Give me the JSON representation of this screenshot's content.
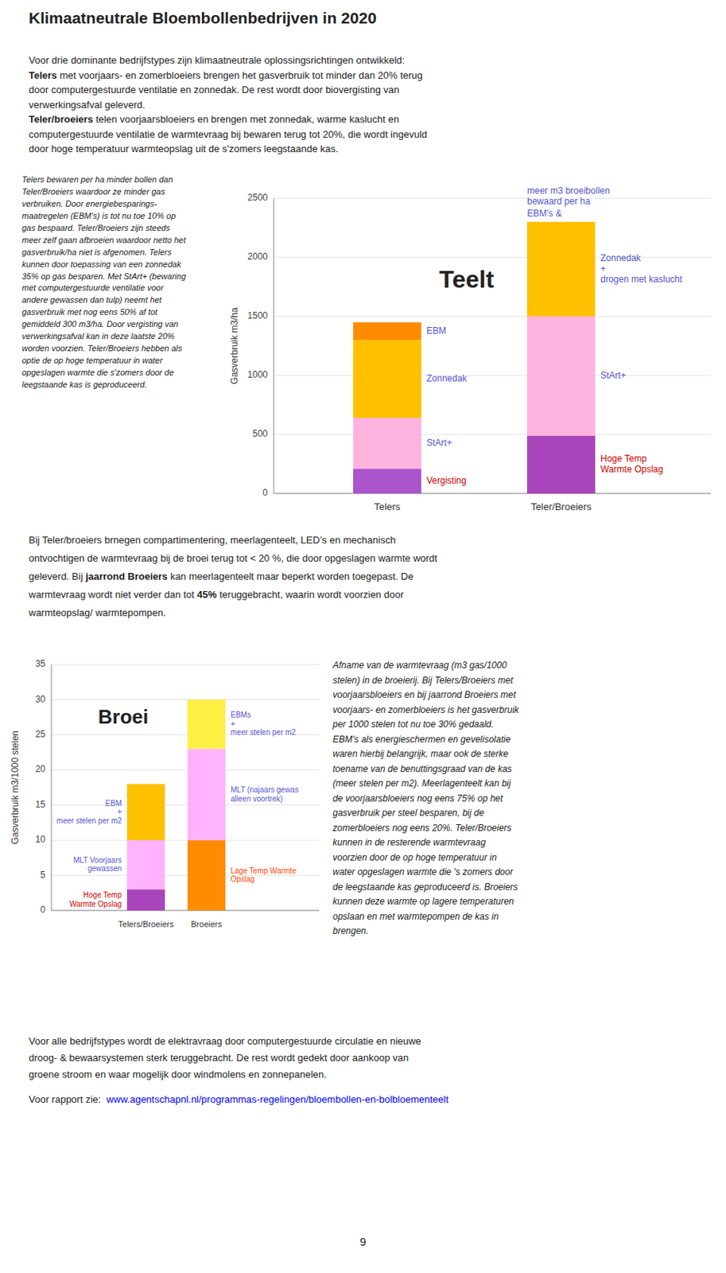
{
  "title": "Klimaatneutrale Bloembollenbedrijven in 2020",
  "intro_lines": [
    "Voor drie dominante bedrijfstypes zijn klimaatneutrale oplossingsrichtingen ontwikkeld:",
    {
      "bold": "Telers",
      "text": " met voorjaars- en zomerbloeiers brengen het gasverbruik tot minder dan 20% terug"
    },
    "door computergestuurde ventilatie en zonnedak. De rest wordt door biovergisting van",
    "verwerkingsafval geleverd.",
    {
      "bold": "Teler/broeiers",
      "text": " telen voorjaarsbloeiers en brengen met zonnedak, warme kaslucht en"
    },
    "computergestuurde ventilatie de warmtevraag bij bewaren terug tot 20%, die wordt ingevuld",
    "door hoge temperatuur warmteopslag uit de s'zomers leegstaande kas."
  ],
  "left_text": "Telers bewaren per ha minder bollen dan\nTeler/Broeiers waardoor ze minder gas\nverbruiken. Door energiebesparings-\nmaatregelen (EBM's) is tot nu toe 10% op\ngas bespaard. Teler/Broeiers zijn steeds\nmeer zelf gaan afbroeien waardoor netto het\ngasverbruik/ha niet is afgenomen. Telers\nkunnen door toepassing van een zonnedak\n35% op gas besparen. Met StArt+ (bewaring\nmet computergestuurde ventilatie voor\nandere gewassen dan tulp) neemt het\ngasverbruik met nog eens 50% af tot\ngemiddeld 300 m3/ha. Door vergisting van\nverwerkingsafval kan in deze laatste 20%\nworden voorzien. Teler/Broeiers hebben als\noptie de op hoge temperatuur in water\nopgeslagen warmte die s'zomers door de\nleegstaande kas is geproduceerd.",
  "middle_lines": [
    "Bij Teler/broeiers brnegen compartimentering, meerlagenteelt, LED’s en mechanisch",
    "ontvochtigen de warmtevraag bij de broei terug tot < 20 %, die door opgeslagen warmte wordt",
    {
      "pre": "geleverd. Bij ",
      "bold": "jaarrond Broeiers",
      "post": " kan meerlagenteelt maar beperkt worden toegepast. De"
    },
    {
      "pre": "warmtevraag wordt niet verder dan tot ",
      "bold": "45%",
      "post": " teruggebracht, waarin wordt voorzien door"
    },
    "warmteopslag/ warmtepompen."
  ],
  "right_text_lines": [
    "Afname van de warmtevraag (m3 gas/1000",
    "stelen) in de broeierij. Bij Telers/Broeiers met",
    "voorjaarsbloeiers en bij jaarrond Broeiers met",
    "voorjaars- en zomerbloeiers is het gasverbruik",
    "per 1000 stelen tot nu toe 30% gedaald.",
    "EBM's als energieschermen en gevelisolatie",
    "waren hierbij belangrijk, maar ook de sterke",
    "toename van de benuttingsgraad van de kas",
    "(meer stelen per m2). Meerlagenteelt kan bij",
    "de voorjaarsbloeiers nog eens 75% op het",
    "gasverbruik per steel besparen, bij de",
    "zomerbloeiers nog eens 20%. Teler/Broeiers",
    "kunnen in de resterende warmtevraag",
    "voorzien door de op hoge temperatuur in",
    "water opgeslagen warmte die 's zomers door",
    "de leegstaande kas geproduceerd is. Broeiers",
    "kunnen deze warmte op lagere temperaturen",
    "opslaan en met warmtepompen de kas in",
    "brengen."
  ],
  "footer_lines": [
    "Voor alle bedrijfstypes wordt de elektravraag door computergestuurde circulatie en nieuwe",
    "droog- & bewaarsystemen sterk teruggebracht. De rest wordt gedekt door aankoop van",
    "groene stroom en waar mogelijk door windmolens en zonnepanelen."
  ],
  "footer_link": {
    "prefix": "Voor rapport zie:  ",
    "url": "www.agentschapnl.nl/programmas-regelingen/bloembollen-en-bolbloementeelt",
    "color": "blue"
  },
  "page_number": "9",
  "chart_data": [
    {
      "type": "bar",
      "stacked": true,
      "title": "Teelt",
      "y_label": "Gasverbruik m3/ha",
      "categories": [
        "Telers",
        "Teler/Broeiers"
      ],
      "series": [
        {
          "name": "Vergisting",
          "color": "#AA55CC",
          "label_color": "#CC0000",
          "values": [
            210,
            null
          ]
        },
        {
          "name": "Hoge Temp\nWarmte Opslag",
          "color": "#AA44BB",
          "label_color": "#CC0000",
          "values": [
            null,
            490
          ]
        },
        {
          "name": "StArt+",
          "color": "#FFB3DE",
          "label_color": "#5555CC",
          "values": [
            430,
            null
          ]
        },
        {
          "name": "StArt+",
          "color": "#FFB3DE",
          "label_color": "#5555CC",
          "values": [
            null,
            1010
          ]
        },
        {
          "name": "Zonnedak",
          "color": "#FFC000",
          "label_color": "#5555CC",
          "values": [
            660,
            null
          ]
        },
        {
          "name": "Zonnedak\n+\ndrogen met kaslucht",
          "color": "#FFC000",
          "label_color": "#5555CC",
          "values": [
            null,
            800
          ]
        },
        {
          "name": "EBM",
          "color": "#FF8C00",
          "label_color": "#5555CC",
          "values": [
            150,
            null
          ]
        }
      ],
      "annotations": [
        "EBM's &",
        "meer m3 broeibollen\nbewaard per ha"
      ],
      "annotation_color": "#5555CC",
      "ylim": [
        0,
        2500
      ],
      "yticks": [
        0,
        500,
        1000,
        1500,
        2000,
        2500
      ],
      "grid": true
    },
    {
      "type": "bar",
      "stacked": true,
      "title": "Broei",
      "y_label": "Gasverbruik m3/1000 stelen",
      "categories": [
        "Telers/Broeiers",
        "Broeiers"
      ],
      "series": [
        {
          "name": "Hoge Temp\nWarmte Opslag",
          "color": "#AA44BB",
          "label_color": "#CC0000",
          "values": [
            3,
            null
          ]
        },
        {
          "name": "MLT Voorjaars\ngewassen",
          "color": "#FFB3FF",
          "label_color": "#5555CC",
          "values": [
            7,
            null
          ]
        },
        {
          "name": "EBM\n+\nmeer stelen per m2",
          "color": "#FFC000",
          "label_color": "#5555CC",
          "values": [
            8,
            null
          ]
        },
        {
          "name": "Lage Temp Warmte\nOpslag",
          "color": "#FF8C00",
          "label_color": "#FF4400",
          "values": [
            null,
            10
          ]
        },
        {
          "name": "MLT (najaars gewas\nalleen voortrek)",
          "color": "#FFB3FF",
          "label_color": "#5555CC",
          "values": [
            null,
            13
          ]
        },
        {
          "name": "EBMs\n+\nmeer stelen per m2",
          "color": "#FFEE44",
          "label_color": "#5555CC",
          "values": [
            null,
            7
          ]
        }
      ],
      "ylim": [
        0,
        35
      ],
      "yticks": [
        0,
        5,
        10,
        15,
        20,
        25,
        30,
        35
      ],
      "grid": true
    }
  ]
}
